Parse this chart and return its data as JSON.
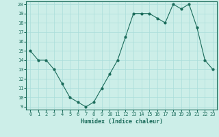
{
  "xlabel": "Humidex (Indice chaleur)",
  "x_values": [
    0,
    1,
    2,
    3,
    4,
    5,
    6,
    7,
    8,
    9,
    10,
    11,
    12,
    13,
    14,
    15,
    16,
    17,
    18,
    19,
    20,
    21,
    22,
    23
  ],
  "y_values": [
    15,
    14,
    14,
    13,
    11.5,
    10,
    9.5,
    9,
    9.5,
    11,
    12.5,
    14,
    16.5,
    19,
    19,
    19,
    18.5,
    18,
    20,
    19.5,
    20,
    17.5,
    14,
    13
  ],
  "ylim_min": 9,
  "ylim_max": 20,
  "xlim_min": 0,
  "xlim_max": 23,
  "yticks": [
    9,
    10,
    11,
    12,
    13,
    14,
    15,
    16,
    17,
    18,
    19,
    20
  ],
  "xticks": [
    0,
    1,
    2,
    3,
    4,
    5,
    6,
    7,
    8,
    9,
    10,
    11,
    12,
    13,
    14,
    15,
    16,
    17,
    18,
    19,
    20,
    21,
    22,
    23
  ],
  "line_color": "#1a6b5a",
  "marker": "o",
  "marker_size": 2.0,
  "background_color": "#cceee8",
  "grid_color": "#aaddda",
  "tick_color": "#1a6b5a",
  "label_color": "#1a6b5a",
  "font_family": "monospace",
  "tick_fontsize": 5.0,
  "xlabel_fontsize": 6.0
}
